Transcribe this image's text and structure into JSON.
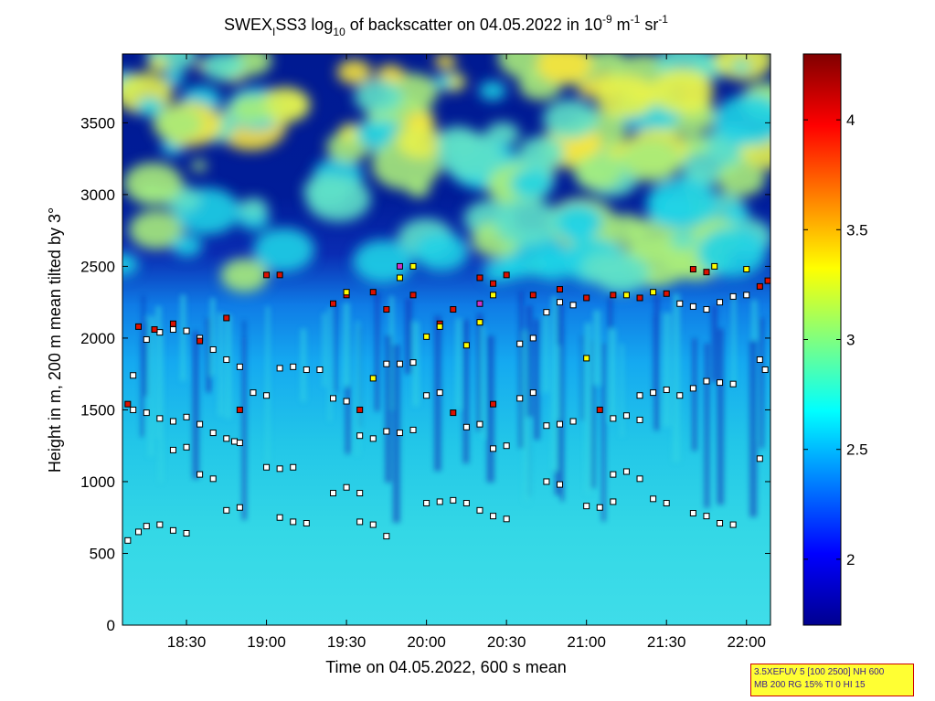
{
  "title": {
    "prefix": "SWEX",
    "sub1": "I",
    "mid": "SS3 log",
    "sub2": "10",
    "mid2": " of backscatter on 04.05.2022 in 10",
    "sup1": "-9",
    "mid3": " m",
    "sup2": "-1",
    "mid4": " sr",
    "sup3": "-1"
  },
  "info_box": {
    "line1": "3.5XEFUV 5 [100 2500] NH 600",
    "line2": "MB 200 RG 15% TI 0 HI 15"
  },
  "chart_data": {
    "type": "heatmap",
    "xlabel": "Time on 04.05.2022, 600 s mean",
    "ylabel": "Height in m, 200 m mean tilted by 3°",
    "xlim": [
      "18:06",
      "22:09"
    ],
    "ylim": [
      0,
      3980
    ],
    "x_ticks": [
      "18:30",
      "19:00",
      "19:30",
      "20:00",
      "20:30",
      "21:00",
      "21:30",
      "22:00"
    ],
    "y_ticks": [
      0,
      500,
      1000,
      1500,
      2000,
      2500,
      3000,
      3500
    ],
    "colorbar": {
      "range": [
        1.7,
        4.3
      ],
      "ticks": [
        2,
        2.5,
        3,
        3.5,
        4
      ],
      "colormap": "jet"
    },
    "colors": {
      "marker_white": "#ffffff",
      "marker_yellow": "#ffff00",
      "marker_red": "#dd1100",
      "marker_magenta": "#cc33cc"
    },
    "layer_markers": {
      "white": [
        [
          "18:08",
          590
        ],
        [
          "18:12",
          650
        ],
        [
          "18:15",
          690
        ],
        [
          "18:20",
          700
        ],
        [
          "18:25",
          660
        ],
        [
          "18:30",
          640
        ],
        [
          "18:35",
          1050
        ],
        [
          "18:40",
          1020
        ],
        [
          "18:45",
          800
        ],
        [
          "18:50",
          820
        ],
        [
          "18:25",
          1220
        ],
        [
          "18:30",
          1240
        ],
        [
          "18:10",
          1500
        ],
        [
          "18:15",
          1480
        ],
        [
          "18:20",
          1440
        ],
        [
          "18:25",
          1420
        ],
        [
          "18:30",
          1450
        ],
        [
          "18:35",
          1400
        ],
        [
          "18:40",
          1340
        ],
        [
          "18:45",
          1300
        ],
        [
          "18:48",
          1280
        ],
        [
          "18:50",
          1270
        ],
        [
          "18:10",
          1740
        ],
        [
          "18:15",
          1990
        ],
        [
          "18:20",
          2040
        ],
        [
          "18:25",
          2060
        ],
        [
          "18:30",
          2050
        ],
        [
          "18:35",
          2000
        ],
        [
          "18:40",
          1920
        ],
        [
          "18:45",
          1850
        ],
        [
          "18:50",
          1800
        ],
        [
          "18:55",
          1620
        ],
        [
          "19:00",
          1600
        ],
        [
          "19:05",
          1790
        ],
        [
          "19:10",
          1800
        ],
        [
          "19:15",
          1780
        ],
        [
          "19:20",
          1780
        ],
        [
          "19:00",
          1100
        ],
        [
          "19:05",
          1090
        ],
        [
          "19:10",
          1100
        ],
        [
          "19:05",
          750
        ],
        [
          "19:10",
          720
        ],
        [
          "19:15",
          710
        ],
        [
          "19:25",
          920
        ],
        [
          "19:30",
          960
        ],
        [
          "19:35",
          920
        ],
        [
          "19:35",
          720
        ],
        [
          "19:40",
          700
        ],
        [
          "19:45",
          620
        ],
        [
          "19:25",
          1580
        ],
        [
          "19:30",
          1560
        ],
        [
          "19:35",
          1320
        ],
        [
          "19:40",
          1300
        ],
        [
          "19:45",
          1350
        ],
        [
          "19:50",
          1340
        ],
        [
          "19:45",
          1820
        ],
        [
          "19:50",
          1820
        ],
        [
          "19:55",
          1830
        ],
        [
          "19:55",
          1360
        ],
        [
          "20:00",
          1600
        ],
        [
          "20:05",
          1620
        ],
        [
          "20:00",
          850
        ],
        [
          "20:05",
          860
        ],
        [
          "20:10",
          870
        ],
        [
          "20:15",
          850
        ],
        [
          "20:20",
          800
        ],
        [
          "20:25",
          760
        ],
        [
          "20:30",
          740
        ],
        [
          "20:15",
          1380
        ],
        [
          "20:20",
          1400
        ],
        [
          "20:25",
          1230
        ],
        [
          "20:30",
          1250
        ],
        [
          "20:35",
          1960
        ],
        [
          "20:40",
          2000
        ],
        [
          "20:45",
          2180
        ],
        [
          "20:50",
          2250
        ],
        [
          "20:55",
          2230
        ],
        [
          "20:35",
          1580
        ],
        [
          "20:40",
          1620
        ],
        [
          "20:45",
          1390
        ],
        [
          "20:50",
          1400
        ],
        [
          "20:55",
          1420
        ],
        [
          "20:45",
          1000
        ],
        [
          "20:50",
          980
        ],
        [
          "21:00",
          830
        ],
        [
          "21:05",
          820
        ],
        [
          "21:10",
          860
        ],
        [
          "21:10",
          1440
        ],
        [
          "21:15",
          1460
        ],
        [
          "21:20",
          1430
        ],
        [
          "21:10",
          1050
        ],
        [
          "21:15",
          1070
        ],
        [
          "21:20",
          1020
        ],
        [
          "21:25",
          880
        ],
        [
          "21:30",
          850
        ],
        [
          "21:20",
          1600
        ],
        [
          "21:25",
          1620
        ],
        [
          "21:30",
          1640
        ],
        [
          "21:35",
          1600
        ],
        [
          "21:40",
          1650
        ],
        [
          "21:45",
          1700
        ],
        [
          "21:50",
          1690
        ],
        [
          "21:55",
          1680
        ],
        [
          "21:40",
          780
        ],
        [
          "21:45",
          760
        ],
        [
          "21:50",
          710
        ],
        [
          "21:55",
          700
        ],
        [
          "21:35",
          2240
        ],
        [
          "21:40",
          2220
        ],
        [
          "21:45",
          2200
        ],
        [
          "21:50",
          2250
        ],
        [
          "21:55",
          2290
        ],
        [
          "22:00",
          2300
        ],
        [
          "22:05",
          1850
        ],
        [
          "22:05",
          1160
        ],
        [
          "22:07",
          1780
        ]
      ],
      "dark_red": [
        [
          "18:08",
          1540
        ],
        [
          "18:12",
          2080
        ],
        [
          "18:18",
          2060
        ],
        [
          "18:25",
          2100
        ],
        [
          "18:35",
          1980
        ],
        [
          "18:45",
          2140
        ],
        [
          "19:00",
          2440
        ],
        [
          "19:05",
          2440
        ],
        [
          "19:25",
          2240
        ],
        [
          "19:30",
          2300
        ],
        [
          "19:40",
          2320
        ],
        [
          "19:45",
          2200
        ],
        [
          "19:55",
          2300
        ],
        [
          "20:05",
          2100
        ],
        [
          "20:10",
          2200
        ],
        [
          "20:20",
          2420
        ],
        [
          "20:25",
          2380
        ],
        [
          "20:30",
          2440
        ],
        [
          "20:40",
          2300
        ],
        [
          "20:50",
          2340
        ],
        [
          "21:00",
          2280
        ],
        [
          "21:10",
          2300
        ],
        [
          "21:20",
          2280
        ],
        [
          "21:30",
          2310
        ],
        [
          "21:40",
          2480
        ],
        [
          "21:45",
          2460
        ],
        [
          "22:05",
          2360
        ],
        [
          "22:08",
          2400
        ],
        [
          "18:50",
          1500
        ],
        [
          "19:35",
          1500
        ],
        [
          "20:10",
          1480
        ],
        [
          "20:25",
          1540
        ],
        [
          "21:05",
          1500
        ]
      ],
      "yellow": [
        [
          "19:50",
          2420
        ],
        [
          "19:55",
          2500
        ],
        [
          "20:00",
          2010
        ],
        [
          "20:05",
          2080
        ],
        [
          "20:15",
          1950
        ],
        [
          "20:25",
          2300
        ],
        [
          "19:40",
          1720
        ],
        [
          "21:15",
          2300
        ],
        [
          "21:25",
          2320
        ],
        [
          "21:48",
          2500
        ],
        [
          "22:00",
          2480
        ],
        [
          "19:30",
          2320
        ],
        [
          "20:20",
          2110
        ],
        [
          "21:00",
          1860
        ]
      ],
      "magenta": [
        [
          "19:50",
          2500
        ],
        [
          "20:20",
          2240
        ]
      ]
    }
  }
}
